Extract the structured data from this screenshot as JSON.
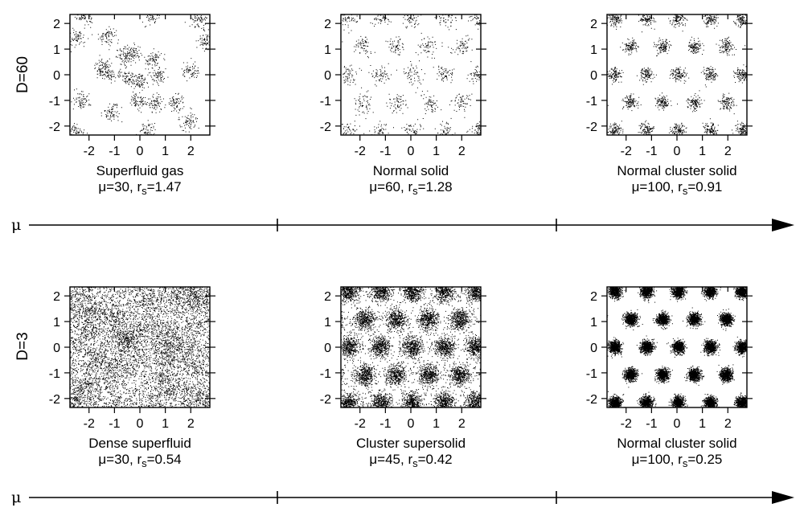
{
  "figure": {
    "rows": [
      {
        "label": "D=60",
        "arrow_label": "μ"
      },
      {
        "label": "D=3",
        "arrow_label": "μ"
      }
    ]
  },
  "chart_data": [
    {
      "type": "scatter",
      "row": 0,
      "col": 0,
      "phase": "Superfluid gas",
      "mu": "μ=30",
      "rs_label": "r",
      "rs_sub": "s",
      "rs_value": "=1.47",
      "xlim": [
        -2.75,
        2.75
      ],
      "ylim": [
        -2.35,
        2.35
      ],
      "xticks": [
        "-2",
        "-1",
        "0",
        "1",
        "2"
      ],
      "yticks": [
        "2",
        "1",
        "0",
        "-1",
        "-2"
      ],
      "pattern": "sparse-random-clumps",
      "cluster_spread": 0.17,
      "points_per_cluster": 70,
      "cluster_centers": [
        [
          -2.2,
          2.3
        ],
        [
          -1.3,
          1.5
        ],
        [
          -0.6,
          0.7
        ],
        [
          -1.5,
          0.25
        ],
        [
          -1.2,
          0.1
        ],
        [
          -0.3,
          0.8
        ],
        [
          0.5,
          0.6
        ],
        [
          0.7,
          0.0
        ],
        [
          -0.5,
          -0.1
        ],
        [
          0.0,
          -0.25
        ],
        [
          2.0,
          0.1
        ],
        [
          2.3,
          2.1
        ],
        [
          -2.5,
          1.4
        ],
        [
          2.6,
          1.3
        ],
        [
          -2.3,
          -1.0
        ],
        [
          -0.1,
          -1.0
        ],
        [
          0.6,
          -1.1
        ],
        [
          1.4,
          -1.1
        ],
        [
          -1.1,
          -1.5
        ],
        [
          1.9,
          -1.8
        ],
        [
          0.3,
          -2.2
        ],
        [
          -2.5,
          -2.3
        ],
        [
          0.5,
          2.3
        ]
      ]
    },
    {
      "type": "scatter",
      "row": 0,
      "col": 1,
      "phase": "Normal solid",
      "mu": "μ=60",
      "rs_label": "r",
      "rs_sub": "s",
      "rs_value": "=1.28",
      "xlim": [
        -2.75,
        2.75
      ],
      "ylim": [
        -2.35,
        2.35
      ],
      "xticks": [
        "-2",
        "-1",
        "0",
        "1",
        "2"
      ],
      "yticks": [
        "2",
        "1",
        "0",
        "-1",
        "-2"
      ],
      "pattern": "triangular-lattice",
      "lattice_a": 1.28,
      "cluster_spread": 0.19,
      "points_per_cluster": 60
    },
    {
      "type": "scatter",
      "row": 0,
      "col": 2,
      "phase": "Normal cluster solid",
      "mu": "μ=100",
      "rs_label": "r",
      "rs_sub": "s",
      "rs_value": "=0.91",
      "xlim": [
        -2.75,
        2.75
      ],
      "ylim": [
        -2.35,
        2.35
      ],
      "xticks": [
        "-2",
        "-1",
        "0",
        "1",
        "2"
      ],
      "yticks": [
        "2",
        "1",
        "0",
        "-1",
        "-2"
      ],
      "pattern": "triangular-lattice",
      "lattice_a": 1.25,
      "cluster_spread": 0.14,
      "points_per_cluster": 110
    },
    {
      "type": "scatter",
      "row": 1,
      "col": 0,
      "phase": "Dense superfluid",
      "mu": "μ=30",
      "rs_label": "r",
      "rs_sub": "s",
      "rs_value": "=0.54",
      "xlim": [
        -2.75,
        2.75
      ],
      "ylim": [
        -2.35,
        2.35
      ],
      "xticks": [
        "-2",
        "-1",
        "0",
        "1",
        "2"
      ],
      "yticks": [
        "2",
        "1",
        "0",
        "-1",
        "-2"
      ],
      "pattern": "dense-uniform",
      "points_total": 4500
    },
    {
      "type": "scatter",
      "row": 1,
      "col": 1,
      "phase": "Cluster supersolid",
      "mu": "μ=45",
      "rs_label": "r",
      "rs_sub": "s",
      "rs_value": "=0.42",
      "xlim": [
        -2.75,
        2.75
      ],
      "ylim": [
        -2.35,
        2.35
      ],
      "xticks": [
        "-2",
        "-1",
        "0",
        "1",
        "2"
      ],
      "yticks": [
        "2",
        "1",
        "0",
        "-1",
        "-2"
      ],
      "pattern": "triangular-lattice-with-background",
      "lattice_a": 1.25,
      "cluster_spread": 0.2,
      "points_per_cluster": 420,
      "background_points": 700
    },
    {
      "type": "scatter",
      "row": 1,
      "col": 2,
      "phase": "Normal cluster solid",
      "mu": "μ=100",
      "rs_label": "r",
      "rs_sub": "s",
      "rs_value": "=0.25",
      "xlim": [
        -2.75,
        2.75
      ],
      "ylim": [
        -2.35,
        2.35
      ],
      "xticks": [
        "-2",
        "-1",
        "0",
        "1",
        "2"
      ],
      "yticks": [
        "2",
        "1",
        "0",
        "-1",
        "-2"
      ],
      "pattern": "triangular-lattice",
      "lattice_a": 1.25,
      "cluster_spread": 0.12,
      "points_per_cluster": 650
    }
  ]
}
